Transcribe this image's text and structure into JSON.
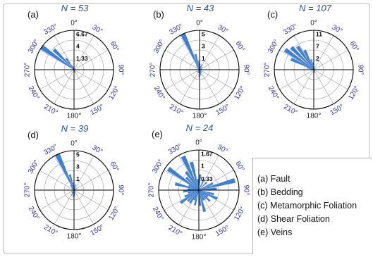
{
  "chart_data": [
    {
      "type": "polar-rose",
      "panel_label": "(a)",
      "title": "N = 53",
      "ring_labels": [
        "1.33",
        "4",
        "6.67"
      ],
      "angle_labels": [
        "0°",
        "30°",
        "60°",
        "90°",
        "120°",
        "150°",
        "180°",
        "210°",
        "240°",
        "270°",
        "300°",
        "330°"
      ],
      "bins_deg": [
        0,
        10,
        20,
        30,
        40,
        50,
        60,
        70,
        80,
        90,
        100,
        110,
        120,
        130,
        140,
        150,
        160,
        170,
        180,
        190,
        200,
        210,
        220,
        230,
        240,
        250,
        260,
        270,
        280,
        290,
        300,
        310,
        320,
        330,
        340,
        350
      ],
      "values": [
        0,
        0,
        0,
        0,
        0,
        0,
        0,
        0,
        0,
        0,
        0,
        0,
        0,
        0,
        0,
        0.5,
        0.5,
        0,
        0,
        0,
        0,
        0,
        0,
        0,
        0,
        0,
        0,
        0,
        0,
        0,
        7.2,
        5.2,
        2.5,
        0.8,
        0.5,
        0
      ]
    },
    {
      "type": "polar-rose",
      "panel_label": "(b)",
      "title": "N = 43",
      "ring_labels": [
        "1",
        "3",
        "5"
      ],
      "angle_labels": [
        "0°",
        "30°",
        "60°",
        "90°",
        "120°",
        "150°",
        "180°",
        "210°",
        "240°",
        "270°",
        "300°",
        "330°"
      ],
      "bins_deg": [
        0,
        10,
        20,
        30,
        40,
        50,
        60,
        70,
        80,
        90,
        100,
        110,
        120,
        130,
        140,
        150,
        160,
        170,
        180,
        190,
        200,
        210,
        220,
        230,
        240,
        250,
        260,
        270,
        280,
        290,
        300,
        310,
        320,
        330,
        340,
        350
      ],
      "values": [
        0.8,
        0.5,
        0.8,
        0.4,
        0,
        0.5,
        0,
        0.3,
        0,
        0,
        0,
        0,
        0,
        0.5,
        0,
        0.4,
        0.8,
        0.5,
        1.0,
        0.5,
        0.4,
        0,
        0.5,
        0,
        0,
        0,
        0,
        0,
        0,
        0,
        0,
        0.5,
        0.8,
        6.5,
        2.2,
        1.2
      ]
    },
    {
      "type": "polar-rose",
      "panel_label": "(c)",
      "title": "N = 107",
      "ring_labels": [
        "2",
        "7",
        "11"
      ],
      "angle_labels": [
        "0°",
        "30°",
        "60°",
        "90°",
        "120°",
        "150°",
        "180°",
        "210°",
        "240°",
        "270°",
        "300°",
        "330°"
      ],
      "bins_deg": [
        0,
        10,
        20,
        30,
        40,
        50,
        60,
        70,
        80,
        90,
        100,
        110,
        120,
        130,
        140,
        150,
        160,
        170,
        180,
        190,
        200,
        210,
        220,
        230,
        240,
        250,
        260,
        270,
        280,
        290,
        300,
        310,
        320,
        330,
        340,
        350
      ],
      "values": [
        1.0,
        0.8,
        0,
        0,
        0,
        0,
        0,
        0,
        0,
        0,
        0,
        0,
        0,
        0,
        0,
        0.8,
        0.8,
        0.8,
        1.0,
        0,
        0,
        0,
        0,
        0,
        0,
        0,
        0,
        0,
        2.2,
        7.5,
        10.5,
        9.5,
        8.5,
        6.5,
        3.2,
        2.2
      ]
    },
    {
      "type": "polar-rose",
      "panel_label": "(d)",
      "title": "N = 39",
      "ring_labels": [
        "1",
        "3",
        "5"
      ],
      "angle_labels": [
        "0°",
        "30°",
        "60°",
        "90°",
        "120°",
        "150°",
        "180°",
        "210°",
        "240°",
        "270°",
        "300°",
        "330°"
      ],
      "bins_deg": [
        0,
        10,
        20,
        30,
        40,
        50,
        60,
        70,
        80,
        90,
        100,
        110,
        120,
        130,
        140,
        150,
        160,
        170,
        180,
        190,
        200,
        210,
        220,
        230,
        240,
        250,
        260,
        270,
        280,
        290,
        300,
        310,
        320,
        330,
        340,
        350
      ],
      "values": [
        0.5,
        0.8,
        0.3,
        0,
        0,
        0.5,
        0,
        0,
        0,
        0,
        0,
        0,
        0,
        0,
        0,
        0,
        0.5,
        0.8,
        1.0,
        0.5,
        0.8,
        0.5,
        0,
        0.5,
        0,
        0,
        0,
        0,
        0,
        0,
        0,
        0.5,
        0.8,
        5.5,
        2.2,
        1.0
      ]
    },
    {
      "type": "polar-rose",
      "panel_label": "(e)",
      "title": "N = 24",
      "ring_labels": [
        "0.33",
        "1",
        "1.67"
      ],
      "angle_labels": [
        "0°",
        "30°",
        "60°",
        "90°",
        "120°",
        "150°",
        "180°",
        "210°",
        "240°",
        "270°",
        "300°",
        "330°"
      ],
      "bins_deg": [
        0,
        10,
        20,
        30,
        40,
        50,
        60,
        70,
        80,
        90,
        100,
        110,
        120,
        130,
        140,
        150,
        160,
        170,
        180,
        190,
        200,
        210,
        220,
        230,
        240,
        250,
        260,
        270,
        280,
        290,
        300,
        310,
        320,
        330,
        340,
        350
      ],
      "values": [
        0.7,
        0,
        0.5,
        0,
        0.5,
        0,
        0.7,
        1.67,
        0.8,
        0,
        0.7,
        0.9,
        0.5,
        0.7,
        0.5,
        0.5,
        1.0,
        0.7,
        0,
        0.7,
        0.5,
        0.7,
        0.7,
        1.0,
        0.7,
        0.5,
        0.7,
        0.5,
        1.1,
        0.5,
        1.67,
        0.8,
        1.0,
        1.67,
        1.3,
        0.5
      ]
    }
  ],
  "legend": {
    "items": [
      "(a) Fault",
      "(b) Bedding",
      "(c) Metamorphic Foliation",
      "(d) Shear Foliation",
      "(e) Veins"
    ]
  },
  "colors": {
    "petal": "#3f7fd1",
    "grid": "#777777",
    "axis": "#000000",
    "angle_label": "#333399",
    "title": "#2e5590"
  }
}
